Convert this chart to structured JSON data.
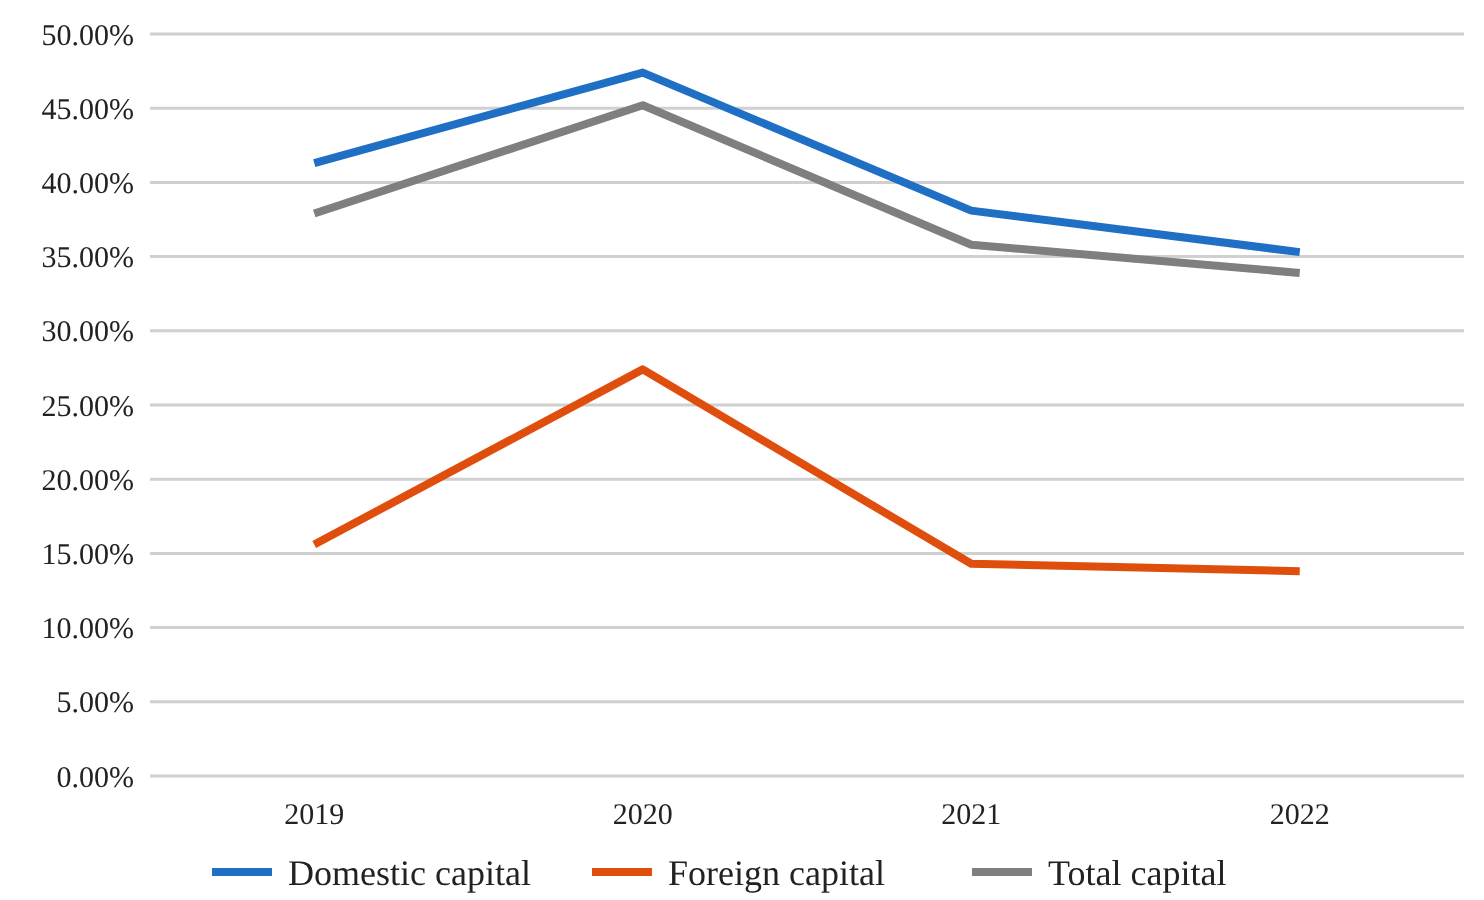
{
  "chart_data": {
    "type": "line",
    "categories": [
      "2019",
      "2020",
      "2021",
      "2022"
    ],
    "series": [
      {
        "name": "Domestic capital",
        "color": "#1f6fc5",
        "values": [
          41.3,
          47.4,
          38.1,
          35.3
        ]
      },
      {
        "name": "Foreign capital",
        "color": "#e04e0e",
        "values": [
          15.6,
          27.4,
          14.3,
          13.8
        ]
      },
      {
        "name": "Total capital",
        "color": "#7f7f7f",
        "values": [
          37.9,
          45.2,
          35.8,
          33.9
        ]
      }
    ],
    "ylim": [
      0,
      50
    ],
    "yticks": [
      {
        "value": 0,
        "label": "0.00%"
      },
      {
        "value": 5,
        "label": "5.00%"
      },
      {
        "value": 10,
        "label": "10.00%"
      },
      {
        "value": 15,
        "label": "15.00%"
      },
      {
        "value": 20,
        "label": "20.00%"
      },
      {
        "value": 25,
        "label": "25.00%"
      },
      {
        "value": 30,
        "label": "30.00%"
      },
      {
        "value": 35,
        "label": "35.00%"
      },
      {
        "value": 40,
        "label": "40.00%"
      },
      {
        "value": 45,
        "label": "45.00%"
      },
      {
        "value": 50,
        "label": "50.00%"
      }
    ],
    "grid": "y",
    "legend": "bottom",
    "marker": "none",
    "line_style": "solid"
  }
}
